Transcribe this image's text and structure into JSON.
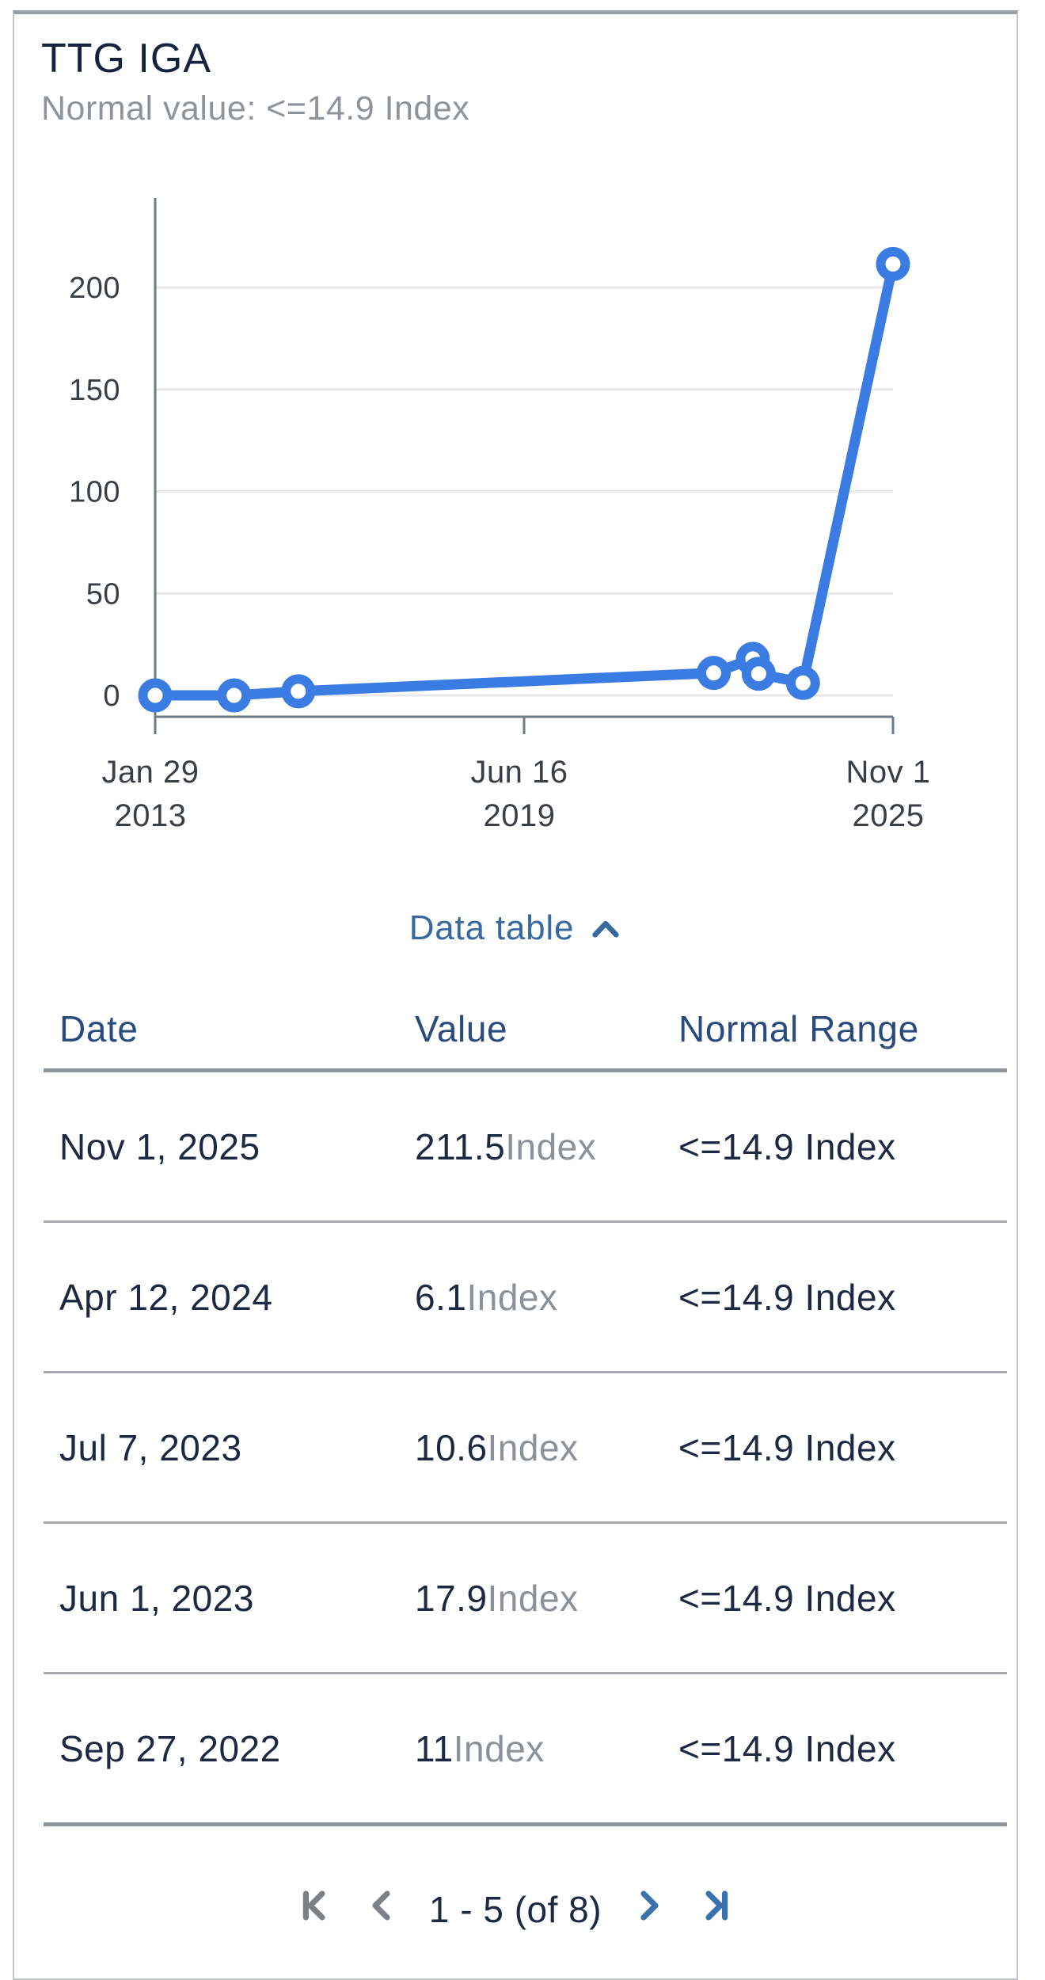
{
  "card": {
    "title": "TTG IGA",
    "subtitle": "Normal value: <=14.9 Index"
  },
  "chart_data": {
    "type": "line",
    "title": "TTG IGA",
    "xlabel": "",
    "ylabel": "",
    "ylim": [
      0,
      244
    ],
    "y_ticks": [
      0,
      50,
      100,
      150,
      200
    ],
    "x_tick_labels": [
      {
        "line1": "Jan 29",
        "line2": "2013",
        "frac": 0
      },
      {
        "line1": "Jun 16",
        "line2": "2019",
        "frac": 0.5
      },
      {
        "line1": "Nov 1",
        "line2": "2025",
        "frac": 1
      }
    ],
    "grid": true,
    "legend": "none",
    "series": [
      {
        "name": "TTG IGA (Index)",
        "points": [
          {
            "x_frac": 0.0,
            "value": 0
          },
          {
            "x_frac": 0.107,
            "value": 0
          },
          {
            "x_frac": 0.194,
            "value": 2
          },
          {
            "x_frac": 0.757,
            "value": 11,
            "date": "Sep 27, 2022"
          },
          {
            "x_frac": 0.81,
            "value": 17.9,
            "date": "Jun 1, 2023"
          },
          {
            "x_frac": 0.818,
            "value": 10.6,
            "date": "Jul 7, 2023"
          },
          {
            "x_frac": 0.878,
            "value": 6.1,
            "date": "Apr 12, 2024"
          },
          {
            "x_frac": 1.0,
            "value": 211.5,
            "date": "Nov 1, 2025"
          }
        ]
      }
    ]
  },
  "data_table": {
    "toggle_label": "Data table",
    "columns": [
      "Date",
      "Value",
      "Normal Range"
    ],
    "rows": [
      {
        "date": "Nov 1, 2025",
        "value": "211.5",
        "unit": "Index",
        "normal_range": "<=14.9 Index"
      },
      {
        "date": "Apr 12, 2024",
        "value": "6.1",
        "unit": "Index",
        "normal_range": "<=14.9 Index"
      },
      {
        "date": "Jul 7, 2023",
        "value": "10.6",
        "unit": "Index",
        "normal_range": "<=14.9 Index"
      },
      {
        "date": "Jun 1, 2023",
        "value": "17.9",
        "unit": "Index",
        "normal_range": "<=14.9 Index"
      },
      {
        "date": "Sep 27, 2022",
        "value": "11",
        "unit": "Index",
        "normal_range": "<=14.9 Index"
      }
    ]
  },
  "pagination": {
    "label": "1 - 5 (of 8)"
  },
  "colors": {
    "line_blue": "#3b7ce2",
    "link_blue": "#38699f",
    "pagination_active_blue": "#3a72ad",
    "pagination_disabled_gray": "#7d8187",
    "title_navy": "#16233f",
    "header_navy": "#2a4b7d",
    "cell_navy": "#1d2843",
    "subtitle_gray": "#8f939a",
    "unit_gray": "#8c9198",
    "axis_gray": "#6e7a85",
    "grid_gray": "#e8e8ea",
    "tick_label_dark": "#3a3e45"
  }
}
